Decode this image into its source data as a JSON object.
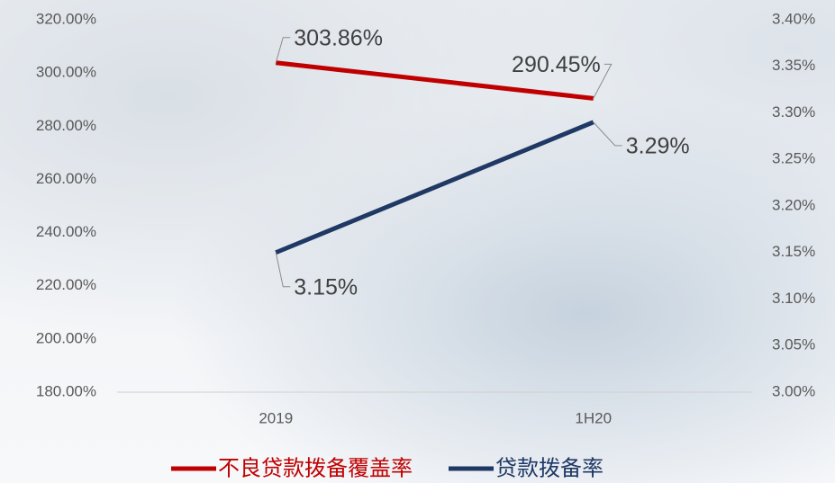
{
  "chart_data": {
    "type": "line",
    "categories": [
      "2019",
      "1H20"
    ],
    "series": [
      {
        "name": "不良贷款拨备覆盖率",
        "color": "#c00000",
        "values": [
          303.86,
          290.45
        ],
        "value_labels": [
          "303.86%",
          "290.45%"
        ]
      },
      {
        "name": "贷款拨备率",
        "color": "#1f3864",
        "axis": "y2",
        "values": [
          3.15,
          3.29
        ],
        "value_labels": [
          "3.15%",
          "3.29%"
        ]
      }
    ],
    "ylim": [
      180,
      320
    ],
    "yticks": [
      {
        "value": 180,
        "label": "180.00%"
      },
      {
        "value": 200,
        "label": "200.00%"
      },
      {
        "value": 220,
        "label": "220.00%"
      },
      {
        "value": 240,
        "label": "240.00%"
      },
      {
        "value": 260,
        "label": "260.00%"
      },
      {
        "value": 280,
        "label": "280.00%"
      },
      {
        "value": 300,
        "label": "300.00%"
      },
      {
        "value": 320,
        "label": "320.00%"
      }
    ],
    "y2lim": [
      3.0,
      3.4
    ],
    "y2ticks": [
      {
        "value": 3.0,
        "label": "3.00%"
      },
      {
        "value": 3.05,
        "label": "3.05%"
      },
      {
        "value": 3.1,
        "label": "3.10%"
      },
      {
        "value": 3.15,
        "label": "3.15%"
      },
      {
        "value": 3.2,
        "label": "3.20%"
      },
      {
        "value": 3.25,
        "label": "3.25%"
      },
      {
        "value": 3.3,
        "label": "3.30%"
      },
      {
        "value": 3.35,
        "label": "3.35%"
      },
      {
        "value": 3.4,
        "label": "3.40%"
      }
    ],
    "legend": "bottom"
  }
}
